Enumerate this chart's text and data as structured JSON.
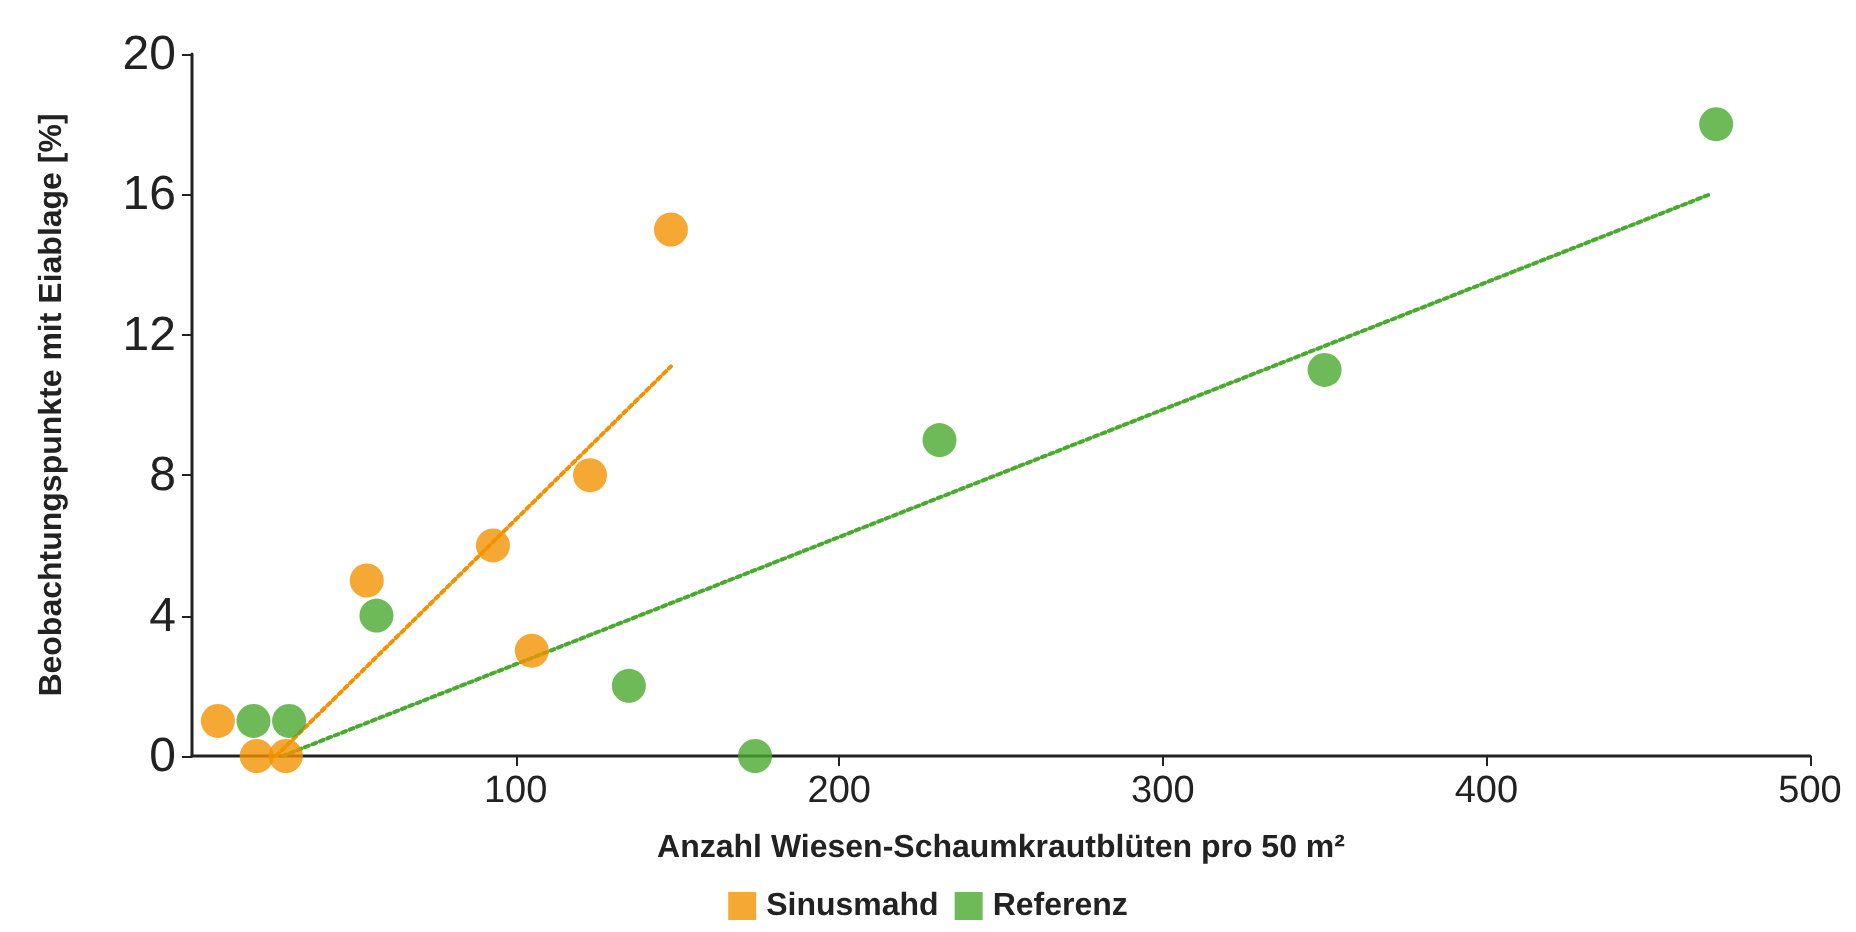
{
  "chart_data": {
    "type": "scatter",
    "xlabel": "Anzahl Wiesen-Schaumkrautblüten pro 50 m²",
    "ylabel": "Beobachtungspunkte mit Eiablage [%]",
    "xlim": [
      0,
      500
    ],
    "xticks": [
      100,
      200,
      300,
      400,
      500
    ],
    "ylim": [
      0,
      20
    ],
    "yticks": [
      0,
      4,
      8,
      12,
      16,
      20
    ],
    "grid": false,
    "legend": "bottom",
    "marker": "circle",
    "series": [
      {
        "name": "Sinusmahd",
        "color": "#f39200",
        "x": [
          8,
          20,
          29,
          54,
          93,
          105,
          123,
          148
        ],
        "values": [
          1,
          0,
          0,
          5,
          6,
          3,
          8,
          15
        ]
      },
      {
        "name": "Referenz",
        "color": "#4aa92f",
        "x": [
          19,
          30,
          57,
          135,
          174,
          231,
          350,
          471
        ],
        "values": [
          1,
          1,
          4,
          2,
          0,
          9,
          11,
          18
        ]
      },
      {
        "type": "line",
        "color": "#f39200",
        "line_style": "dotted",
        "marker": "none",
        "x": [
          26,
          148
        ],
        "values": [
          0,
          11.1
        ]
      },
      {
        "type": "line",
        "color": "#4aa92f",
        "line_style": "dotted",
        "marker": "none",
        "x": [
          28,
          469
        ],
        "values": [
          0,
          16
        ]
      }
    ]
  }
}
